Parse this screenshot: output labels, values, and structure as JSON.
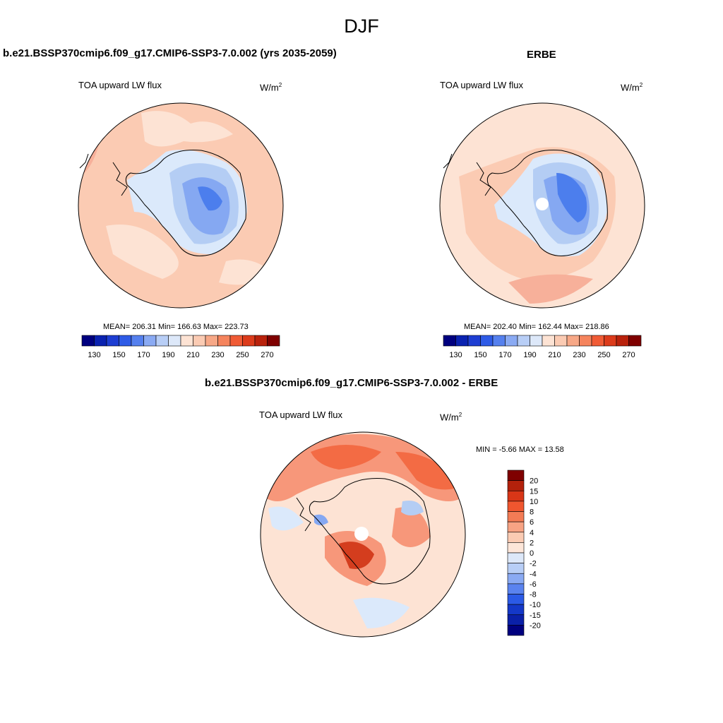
{
  "figure": {
    "title": "DJF",
    "colors": {
      "ocean_warm": "#fbcbb3",
      "ocean_pale": "#fde3d4",
      "ocean_mid": "#f7b09a",
      "ice_light": "#dbe9fb",
      "ice_mid": "#b4cdf4",
      "ice_deep": "#85a8f2",
      "ice_core": "#4c7eed",
      "diff_strong": "#f36b44",
      "diff_mid": "#f7977a",
      "diff_dark": "#d43d1e"
    }
  },
  "panels": {
    "left": {
      "header": "b.e21.BSSP370cmip6.f09_g17.CMIP6-SSP3-7.0.002 (yrs 2035-2059)",
      "variable": "TOA upward LW flux",
      "units_base": "W/m",
      "units_exp": "2",
      "stats": "MEAN= 206.31  Min= 166.63  Max= 223.73"
    },
    "right": {
      "header": "ERBE",
      "variable": "TOA upward LW flux",
      "units_base": "W/m",
      "units_exp": "2",
      "stats": "MEAN= 202.40  Min= 162.44  Max= 218.86"
    },
    "diff": {
      "header": "b.e21.BSSP370cmip6.f09_g17.CMIP6-SSP3-7.0.002 - ERBE",
      "variable": "TOA upward LW flux",
      "units_base": "W/m",
      "units_exp": "2",
      "minmax": "MIN =  -5.66 MAX =  13.58"
    }
  },
  "chart_data": {
    "type": "heatmap",
    "abs_colorbar": {
      "colors": [
        "#00007f",
        "#0a22b0",
        "#1e3ed2",
        "#2e5be6",
        "#5580ee",
        "#8aaaf3",
        "#b8cef6",
        "#dde8f9",
        "#fde3d4",
        "#fbcbb3",
        "#f7a887",
        "#f5845d",
        "#f05b35",
        "#dc3b1b",
        "#b9220c",
        "#7f0000"
      ],
      "tick_labels": [
        "130",
        "150",
        "170",
        "190",
        "210",
        "230",
        "250",
        "270"
      ]
    },
    "diff_colorbar": {
      "colors": [
        "#7f0000",
        "#b3210b",
        "#d83617",
        "#f0562f",
        "#f37b55",
        "#f7a384",
        "#fbcbb3",
        "#fde6d9",
        "#dde8f9",
        "#b8cef6",
        "#8aaaf3",
        "#5a83ef",
        "#2b5ae6",
        "#1438c8",
        "#0a20a8",
        "#00007f"
      ],
      "tick_labels": [
        "20",
        "15",
        "10",
        "8",
        "6",
        "4",
        "2",
        "0",
        "-2",
        "-4",
        "-6",
        "-8",
        "-10",
        "-15",
        "-20"
      ]
    }
  }
}
